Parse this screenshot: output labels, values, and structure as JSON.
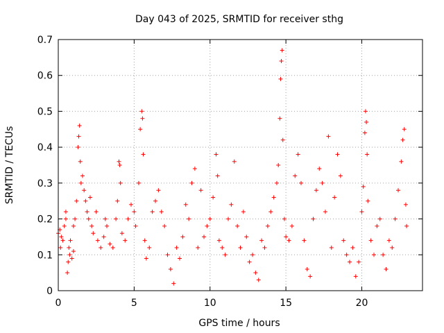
{
  "chart_data": {
    "type": "scatter",
    "title": "Day 043 of 2025, SRMTID for receiver sthg",
    "xlabel": "GPS time / hours",
    "ylabel": "SRMTID / TECUs",
    "xlim": [
      0,
      24
    ],
    "ylim": [
      0,
      0.7
    ],
    "xticks": [
      0,
      5,
      10,
      15,
      20
    ],
    "xtick_labels": [
      "0",
      "5",
      "10",
      "15",
      "20"
    ],
    "yticks": [
      0,
      0.1,
      0.2,
      0.3,
      0.4,
      0.5,
      0.6,
      0.7
    ],
    "ytick_labels": [
      "0",
      "0.1",
      "0.2",
      "0.3",
      "0.4",
      "0.5",
      "0.6",
      "0.7"
    ],
    "grid": true,
    "marker": "+",
    "color": "#ff0000",
    "series": [
      {
        "name": "SRMTID",
        "points": [
          [
            0.0,
            0.16
          ],
          [
            0.1,
            0.17
          ],
          [
            0.15,
            0.12
          ],
          [
            0.2,
            0.15
          ],
          [
            0.3,
            0.14
          ],
          [
            0.4,
            0.18
          ],
          [
            0.5,
            0.2
          ],
          [
            0.5,
            0.22
          ],
          [
            0.6,
            0.05
          ],
          [
            0.65,
            0.08
          ],
          [
            0.7,
            0.12
          ],
          [
            0.75,
            0.1
          ],
          [
            0.8,
            0.14
          ],
          [
            0.9,
            0.09
          ],
          [
            1.0,
            0.11
          ],
          [
            1.0,
            0.18
          ],
          [
            1.1,
            0.2
          ],
          [
            1.2,
            0.25
          ],
          [
            1.3,
            0.4
          ],
          [
            1.35,
            0.43
          ],
          [
            1.4,
            0.46
          ],
          [
            1.45,
            0.36
          ],
          [
            1.5,
            0.3
          ],
          [
            1.6,
            0.32
          ],
          [
            1.7,
            0.28
          ],
          [
            1.8,
            0.25
          ],
          [
            1.9,
            0.22
          ],
          [
            2.0,
            0.2
          ],
          [
            2.1,
            0.26
          ],
          [
            2.2,
            0.18
          ],
          [
            2.3,
            0.16
          ],
          [
            2.5,
            0.22
          ],
          [
            2.6,
            0.14
          ],
          [
            2.8,
            0.12
          ],
          [
            3.0,
            0.15
          ],
          [
            3.1,
            0.2
          ],
          [
            3.2,
            0.18
          ],
          [
            3.4,
            0.13
          ],
          [
            3.6,
            0.12
          ],
          [
            3.8,
            0.2
          ],
          [
            3.9,
            0.25
          ],
          [
            4.0,
            0.36
          ],
          [
            4.05,
            0.35
          ],
          [
            4.1,
            0.3
          ],
          [
            4.2,
            0.16
          ],
          [
            4.4,
            0.14
          ],
          [
            4.6,
            0.2
          ],
          [
            4.8,
            0.24
          ],
          [
            5.0,
            0.22
          ],
          [
            5.1,
            0.18
          ],
          [
            5.3,
            0.3
          ],
          [
            5.4,
            0.45
          ],
          [
            5.5,
            0.5
          ],
          [
            5.55,
            0.48
          ],
          [
            5.6,
            0.38
          ],
          [
            5.7,
            0.14
          ],
          [
            5.8,
            0.09
          ],
          [
            6.0,
            0.12
          ],
          [
            6.2,
            0.22
          ],
          [
            6.4,
            0.25
          ],
          [
            6.6,
            0.28
          ],
          [
            6.8,
            0.22
          ],
          [
            7.0,
            0.18
          ],
          [
            7.2,
            0.1
          ],
          [
            7.4,
            0.06
          ],
          [
            7.6,
            0.02
          ],
          [
            7.8,
            0.12
          ],
          [
            8.0,
            0.09
          ],
          [
            8.2,
            0.15
          ],
          [
            8.4,
            0.24
          ],
          [
            8.6,
            0.2
          ],
          [
            8.8,
            0.3
          ],
          [
            9.0,
            0.34
          ],
          [
            9.2,
            0.12
          ],
          [
            9.4,
            0.28
          ],
          [
            9.6,
            0.15
          ],
          [
            9.8,
            0.18
          ],
          [
            10.0,
            0.2
          ],
          [
            10.2,
            0.26
          ],
          [
            10.4,
            0.38
          ],
          [
            10.5,
            0.32
          ],
          [
            10.6,
            0.14
          ],
          [
            10.8,
            0.12
          ],
          [
            11.0,
            0.1
          ],
          [
            11.2,
            0.2
          ],
          [
            11.4,
            0.24
          ],
          [
            11.6,
            0.36
          ],
          [
            11.8,
            0.18
          ],
          [
            12.0,
            0.12
          ],
          [
            12.2,
            0.22
          ],
          [
            12.4,
            0.15
          ],
          [
            12.6,
            0.08
          ],
          [
            12.8,
            0.1
          ],
          [
            13.0,
            0.05
          ],
          [
            13.2,
            0.03
          ],
          [
            13.4,
            0.14
          ],
          [
            13.6,
            0.12
          ],
          [
            13.8,
            0.18
          ],
          [
            14.0,
            0.22
          ],
          [
            14.2,
            0.26
          ],
          [
            14.4,
            0.3
          ],
          [
            14.5,
            0.35
          ],
          [
            14.6,
            0.48
          ],
          [
            14.65,
            0.59
          ],
          [
            14.7,
            0.64
          ],
          [
            14.75,
            0.67
          ],
          [
            14.8,
            0.42
          ],
          [
            14.9,
            0.2
          ],
          [
            15.0,
            0.15
          ],
          [
            15.2,
            0.14
          ],
          [
            15.4,
            0.18
          ],
          [
            15.6,
            0.32
          ],
          [
            15.8,
            0.38
          ],
          [
            16.0,
            0.3
          ],
          [
            16.2,
            0.14
          ],
          [
            16.4,
            0.06
          ],
          [
            16.6,
            0.04
          ],
          [
            16.8,
            0.2
          ],
          [
            17.0,
            0.28
          ],
          [
            17.2,
            0.34
          ],
          [
            17.4,
            0.3
          ],
          [
            17.6,
            0.22
          ],
          [
            17.8,
            0.43
          ],
          [
            18.0,
            0.12
          ],
          [
            18.2,
            0.26
          ],
          [
            18.4,
            0.38
          ],
          [
            18.6,
            0.32
          ],
          [
            18.8,
            0.14
          ],
          [
            19.0,
            0.1
          ],
          [
            19.2,
            0.08
          ],
          [
            19.4,
            0.12
          ],
          [
            19.6,
            0.04
          ],
          [
            19.8,
            0.08
          ],
          [
            20.0,
            0.22
          ],
          [
            20.1,
            0.29
          ],
          [
            20.2,
            0.44
          ],
          [
            20.25,
            0.5
          ],
          [
            20.3,
            0.47
          ],
          [
            20.35,
            0.38
          ],
          [
            20.4,
            0.25
          ],
          [
            20.6,
            0.14
          ],
          [
            20.8,
            0.1
          ],
          [
            21.0,
            0.18
          ],
          [
            21.2,
            0.2
          ],
          [
            21.4,
            0.1
          ],
          [
            21.6,
            0.06
          ],
          [
            21.8,
            0.14
          ],
          [
            22.0,
            0.12
          ],
          [
            22.2,
            0.2
          ],
          [
            22.4,
            0.28
          ],
          [
            22.6,
            0.36
          ],
          [
            22.7,
            0.42
          ],
          [
            22.8,
            0.45
          ],
          [
            22.9,
            0.24
          ],
          [
            22.95,
            0.18
          ]
        ]
      }
    ]
  }
}
